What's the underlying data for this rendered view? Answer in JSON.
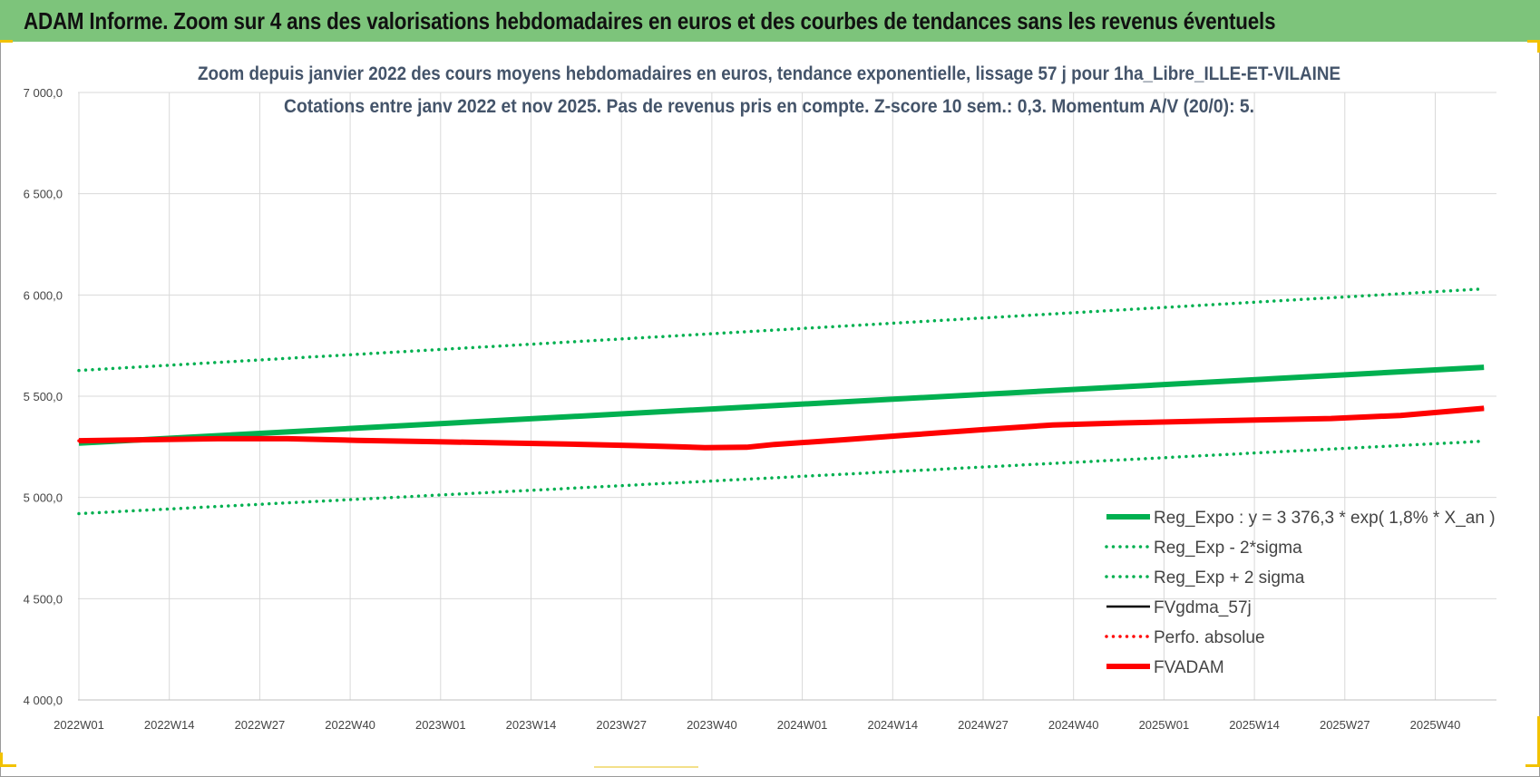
{
  "header": {
    "title": "ADAM Informe. Zoom sur 4 ans des valorisations hebdomadaires en euros et des courbes de tendances sans les revenus éventuels"
  },
  "chart_data": {
    "type": "line",
    "title": "Zoom depuis janvier 2022 des cours moyens hebdomadaires en euros, tendance exponentielle, lissage 57 j pour 1ha_Libre_ILLE-ET-VILAINE",
    "subtitle": "Cotations entre janv 2022 et nov 2025. Pas de revenus pris en compte. Z-score 10 sem.: 0,3. Momentum A/V (20/0): 5.",
    "xlabel": "",
    "ylabel": "",
    "ylim": [
      4000,
      7000
    ],
    "yticks": [
      4000,
      4500,
      5000,
      5500,
      6000,
      6500,
      7000
    ],
    "ytick_labels": [
      "4 000,0",
      "4 500,0",
      "5 000,0",
      "5 500,0",
      "6 000,0",
      "6 500,0",
      "7 000,0"
    ],
    "categories": [
      "2022W01",
      "2022W14",
      "2022W27",
      "2022W40",
      "2023W01",
      "2023W14",
      "2023W27",
      "2023W40",
      "2024W01",
      "2024W14",
      "2024W27",
      "2024W40",
      "2025W01",
      "2025W14",
      "2025W27",
      "2025W40"
    ],
    "x_end_week_index": 202,
    "grid": true,
    "legend_position": "bottom-right",
    "series": [
      {
        "name": "Reg_Expo : y = 3 376,3 * exp( 1,8% *  X_an )",
        "style": "solid-thick",
        "color": "#00b050",
        "points": [
          [
            0,
            5268
          ],
          [
            202,
            5643
          ]
        ]
      },
      {
        "name": "Reg_Exp - 2*sigma",
        "style": "dotted",
        "color": "#00b050",
        "points": [
          [
            0,
            4920
          ],
          [
            202,
            5278
          ]
        ]
      },
      {
        "name": "Reg_Exp + 2 sigma",
        "style": "dotted",
        "color": "#00b050",
        "points": [
          [
            0,
            5627
          ],
          [
            202,
            6030
          ]
        ]
      },
      {
        "name": "FVgdma_57j",
        "style": "solid",
        "color": "#000000",
        "points": [
          [
            0,
            5280
          ],
          [
            10,
            5285
          ],
          [
            20,
            5290
          ],
          [
            30,
            5290
          ],
          [
            40,
            5282
          ],
          [
            50,
            5276
          ],
          [
            60,
            5270
          ],
          [
            70,
            5264
          ],
          [
            80,
            5256
          ],
          [
            86,
            5250
          ],
          [
            90,
            5246
          ],
          [
            96,
            5248
          ],
          [
            100,
            5262
          ],
          [
            110,
            5285
          ],
          [
            120,
            5310
          ],
          [
            130,
            5335
          ],
          [
            140,
            5358
          ],
          [
            150,
            5368
          ],
          [
            160,
            5376
          ],
          [
            170,
            5383
          ],
          [
            180,
            5390
          ],
          [
            190,
            5405
          ],
          [
            202,
            5440
          ]
        ]
      },
      {
        "name": "Perfo. absolue",
        "style": "dotted",
        "color": "#ff0000",
        "points": [
          [
            0,
            5280
          ],
          [
            10,
            5285
          ],
          [
            20,
            5290
          ],
          [
            30,
            5290
          ],
          [
            40,
            5282
          ],
          [
            50,
            5276
          ],
          [
            60,
            5270
          ],
          [
            70,
            5264
          ],
          [
            80,
            5256
          ],
          [
            86,
            5250
          ],
          [
            90,
            5246
          ],
          [
            96,
            5248
          ],
          [
            100,
            5262
          ],
          [
            110,
            5285
          ],
          [
            120,
            5310
          ],
          [
            130,
            5335
          ],
          [
            140,
            5358
          ],
          [
            150,
            5368
          ],
          [
            160,
            5376
          ],
          [
            170,
            5383
          ],
          [
            180,
            5390
          ],
          [
            190,
            5405
          ],
          [
            202,
            5440
          ]
        ]
      },
      {
        "name": "FVADAM",
        "style": "solid-thick",
        "color": "#ff0000",
        "points": [
          [
            0,
            5280
          ],
          [
            10,
            5285
          ],
          [
            20,
            5290
          ],
          [
            30,
            5290
          ],
          [
            40,
            5282
          ],
          [
            50,
            5276
          ],
          [
            60,
            5270
          ],
          [
            70,
            5264
          ],
          [
            80,
            5256
          ],
          [
            86,
            5250
          ],
          [
            90,
            5246
          ],
          [
            96,
            5248
          ],
          [
            100,
            5262
          ],
          [
            110,
            5285
          ],
          [
            120,
            5310
          ],
          [
            130,
            5335
          ],
          [
            140,
            5358
          ],
          [
            150,
            5368
          ],
          [
            160,
            5376
          ],
          [
            170,
            5383
          ],
          [
            180,
            5390
          ],
          [
            190,
            5405
          ],
          [
            202,
            5440
          ]
        ]
      }
    ]
  },
  "colors": {
    "banner": "#7dc47b",
    "corner_accent": "#f2c200",
    "title_text": "#44546a"
  }
}
